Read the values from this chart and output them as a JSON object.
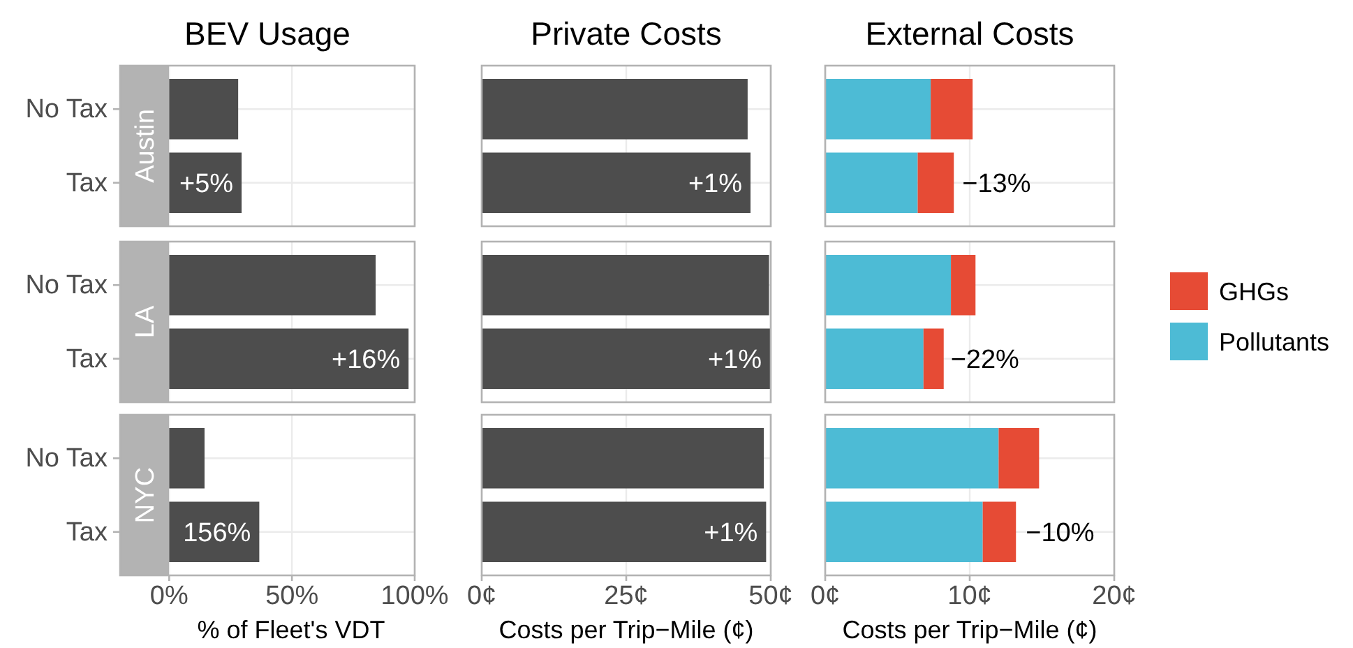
{
  "chart_data": [
    {
      "type": "bar",
      "orientation": "horizontal",
      "title": "BEV Usage",
      "ylabel": "Austin",
      "categories": [
        "No Tax",
        "Tax"
      ],
      "values": [
        28.1,
        29.5
      ],
      "annotations": [
        {
          "text": "+5%",
          "x": 29.5,
          "y": "Tax"
        }
      ],
      "color": "#4d4d4d",
      "xlim": [
        -20,
        100
      ],
      "xticks": [
        {
          "value": 0,
          "label": null
        },
        {
          "value": 50,
          "label": null
        },
        {
          "value": 100,
          "label": null
        }
      ],
      "grid": true,
      "tick_labels": "y"
    },
    {
      "type": "bar",
      "orientation": "horizontal",
      "title": "Private Costs",
      "categories": [
        "No Tax",
        "Tax"
      ],
      "values": [
        46.0,
        46.5
      ],
      "annotations": [
        {
          "text": "+1%",
          "x": 46.5,
          "y": "Tax"
        }
      ],
      "color": "#4d4d4d",
      "xlim": [
        0,
        50
      ],
      "xticks": [
        {
          "value": 0,
          "label": null
        },
        {
          "value": 25,
          "label": null
        },
        {
          "value": 50,
          "label": null
        }
      ],
      "grid": true,
      "tick_labels": false
    },
    {
      "type": "bar",
      "orientation": "horizontal",
      "title": "External Costs",
      "categories": [
        "No Tax",
        "Tax"
      ],
      "stacked": true,
      "series": [
        {
          "color": "#4dbbd5",
          "values": [
            7.3,
            6.4
          ]
        },
        {
          "color": "#e64b35",
          "values": [
            2.9,
            2.5
          ]
        }
      ],
      "annotations": [
        {
          "text": "−13%",
          "x": 8.9,
          "y": "Tax"
        }
      ],
      "xlim": [
        0,
        20
      ],
      "xticks": [
        {
          "value": 0,
          "label": null
        },
        {
          "value": 10,
          "label": null
        },
        {
          "value": 20,
          "label": null
        }
      ],
      "grid": true,
      "tick_labels": false
    },
    {
      "type": "bar",
      "orientation": "horizontal",
      "ylabel": "LA",
      "categories": [
        "No Tax",
        "Tax"
      ],
      "values": [
        84.1,
        97.5
      ],
      "annotations": [
        {
          "text": "+16%",
          "x": 97.5,
          "y": "Tax"
        }
      ],
      "color": "#4d4d4d",
      "xlim": [
        -20,
        100
      ],
      "xticks": [
        {
          "value": 0,
          "label": null
        },
        {
          "value": 50,
          "label": null
        },
        {
          "value": 100,
          "label": null
        }
      ],
      "grid": true,
      "tick_labels": "y"
    },
    {
      "type": "bar",
      "orientation": "horizontal",
      "categories": [
        "No Tax",
        "Tax"
      ],
      "values": [
        49.7,
        49.9
      ],
      "annotations": [
        {
          "text": "+1%",
          "x": 49.9,
          "y": "Tax"
        }
      ],
      "color": "#4d4d4d",
      "xlim": [
        0,
        50
      ],
      "xticks": [
        {
          "value": 0,
          "label": null
        },
        {
          "value": 25,
          "label": null
        },
        {
          "value": 50,
          "label": null
        }
      ],
      "grid": true,
      "tick_labels": false
    },
    {
      "type": "bar",
      "orientation": "horizontal",
      "categories": [
        "No Tax",
        "Tax"
      ],
      "stacked": true,
      "legend": "right",
      "series": [
        {
          "name": "Pollutants",
          "color": "#4dbbd5",
          "values": [
            8.7,
            6.8
          ]
        },
        {
          "name": "GHGs",
          "color": "#e64b35",
          "values": [
            1.7,
            1.4
          ]
        }
      ],
      "annotations": [
        {
          "text": "−22%",
          "x": 8.1,
          "y": "Tax"
        }
      ],
      "xlim": [
        0,
        20
      ],
      "xticks": [
        {
          "value": 0,
          "label": null
        },
        {
          "value": 10,
          "label": null
        },
        {
          "value": 20,
          "label": null
        }
      ],
      "grid": true,
      "tick_labels": false
    },
    {
      "type": "bar",
      "orientation": "horizontal",
      "ylabel": "NYC",
      "xlabel": "% of Fleet's VDT",
      "categories": [
        "No Tax",
        "Tax"
      ],
      "values": [
        14.4,
        36.7
      ],
      "annotations": [
        {
          "text": "156%",
          "x": 36.7,
          "y": "Tax"
        }
      ],
      "color": "#4d4d4d",
      "xlim": [
        -20,
        100
      ],
      "xticks": [
        {
          "value": 0,
          "label": "0%"
        },
        {
          "value": 50,
          "label": "50%"
        },
        {
          "value": 100,
          "label": "100%"
        }
      ],
      "grid": true
    },
    {
      "type": "bar",
      "orientation": "horizontal",
      "xlabel": "Costs per Trip−Mile (¢)",
      "categories": [
        "No Tax",
        "Tax"
      ],
      "values": [
        48.8,
        49.2
      ],
      "annotations": [
        {
          "text": "+1%",
          "x": 49.2,
          "y": "Tax"
        }
      ],
      "color": "#4d4d4d",
      "xlim": [
        0,
        50
      ],
      "xticks": [
        {
          "value": 0,
          "label": "0¢"
        },
        {
          "value": 25,
          "label": "25¢"
        },
        {
          "value": 50,
          "label": "50¢"
        }
      ],
      "grid": true,
      "tick_labels": "x"
    },
    {
      "type": "bar",
      "orientation": "horizontal",
      "xlabel": "Costs per Trip−Mile (¢)",
      "categories": [
        "No Tax",
        "Tax"
      ],
      "stacked": true,
      "series": [
        {
          "color": "#4dbbd5",
          "values": [
            12.0,
            10.9
          ]
        },
        {
          "color": "#e64b35",
          "values": [
            2.8,
            2.3
          ]
        }
      ],
      "annotations": [
        {
          "text": "−10%",
          "x": 13.3,
          "y": "Tax"
        }
      ],
      "xlim": [
        0,
        20
      ],
      "xticks": [
        {
          "value": 0,
          "label": "0¢"
        },
        {
          "value": 10,
          "label": "10¢"
        },
        {
          "value": 20,
          "label": "20¢"
        }
      ],
      "grid": true,
      "tick_labels": "x"
    }
  ]
}
